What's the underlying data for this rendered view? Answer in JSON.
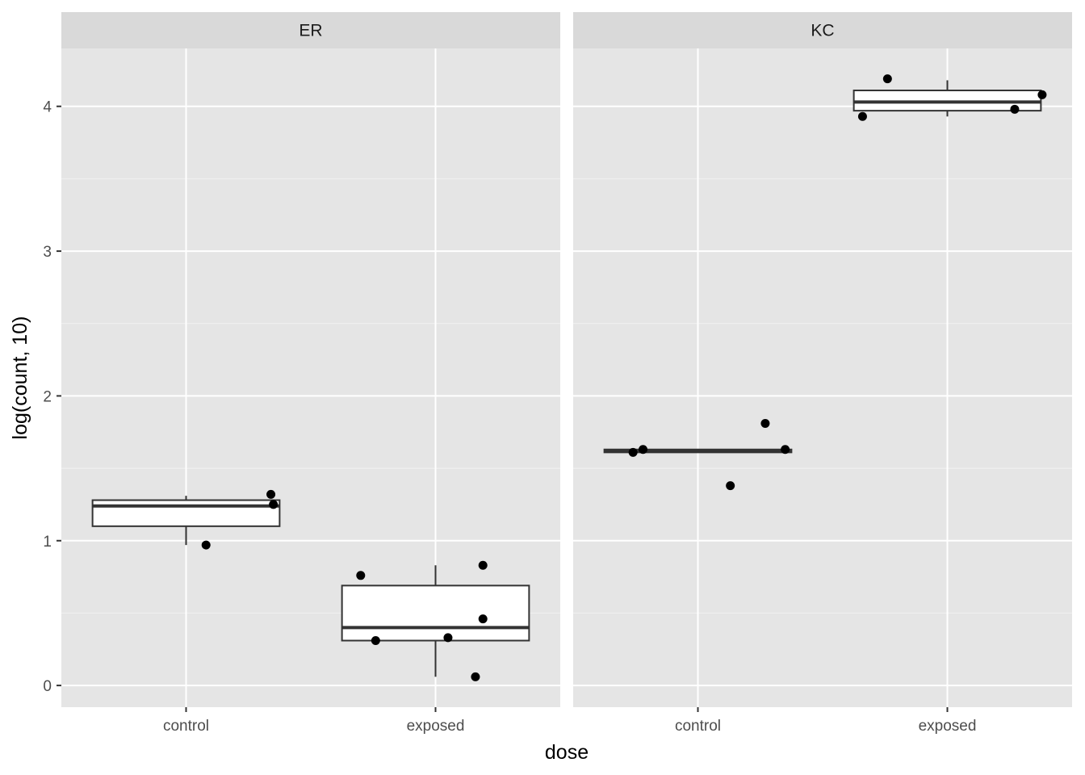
{
  "chart_data": {
    "type": "boxplot",
    "facet_by": "panel",
    "xlabel": "dose",
    "ylabel": "log(count, 10)",
    "categories": [
      "control",
      "exposed"
    ],
    "ylim": [
      -0.15,
      4.4
    ],
    "yticks": [
      0,
      1,
      2,
      3,
      4
    ],
    "ytick_labels": [
      "0",
      "1",
      "2",
      "3",
      "4"
    ],
    "grid": true,
    "background": "#e5e5e5",
    "strip_color": "#d9d9d9",
    "panels": [
      {
        "name": "ER",
        "boxes": [
          {
            "category": "control",
            "lower_whisker": 0.97,
            "q1": 1.1,
            "median": 1.24,
            "q3": 1.28,
            "upper_whisker": 1.31
          },
          {
            "category": "exposed",
            "lower_whisker": 0.06,
            "q1": 0.31,
            "median": 0.4,
            "q3": 0.69,
            "upper_whisker": 0.83
          }
        ],
        "points": [
          {
            "category": "control",
            "jitter": 0.08,
            "y": 0.97
          },
          {
            "category": "control",
            "jitter": 0.34,
            "y": 1.32
          },
          {
            "category": "control",
            "jitter": 0.35,
            "y": 1.25
          },
          {
            "category": "exposed",
            "jitter": -0.3,
            "y": 0.76
          },
          {
            "category": "exposed",
            "jitter": -0.24,
            "y": 0.31
          },
          {
            "category": "exposed",
            "jitter": 0.05,
            "y": 0.33
          },
          {
            "category": "exposed",
            "jitter": 0.16,
            "y": 0.06
          },
          {
            "category": "exposed",
            "jitter": 0.19,
            "y": 0.83
          },
          {
            "category": "exposed",
            "jitter": 0.19,
            "y": 0.46
          }
        ]
      },
      {
        "name": "KC",
        "boxes": [
          {
            "category": "control",
            "lower_whisker": 1.61,
            "q1": 1.61,
            "median": 1.62,
            "q3": 1.63,
            "upper_whisker": 1.63
          },
          {
            "category": "exposed",
            "lower_whisker": 3.93,
            "q1": 3.97,
            "median": 4.03,
            "q3": 4.11,
            "upper_whisker": 4.18
          }
        ],
        "points": [
          {
            "category": "control",
            "jitter": -0.26,
            "y": 1.61
          },
          {
            "category": "control",
            "jitter": -0.22,
            "y": 1.63
          },
          {
            "category": "control",
            "jitter": 0.13,
            "y": 1.38
          },
          {
            "category": "control",
            "jitter": 0.27,
            "y": 1.81
          },
          {
            "category": "control",
            "jitter": 0.35,
            "y": 1.63
          },
          {
            "category": "exposed",
            "jitter": -0.34,
            "y": 3.93
          },
          {
            "category": "exposed",
            "jitter": -0.24,
            "y": 4.19
          },
          {
            "category": "exposed",
            "jitter": 0.27,
            "y": 3.98
          },
          {
            "category": "exposed",
            "jitter": 0.38,
            "y": 4.08
          }
        ]
      }
    ]
  }
}
